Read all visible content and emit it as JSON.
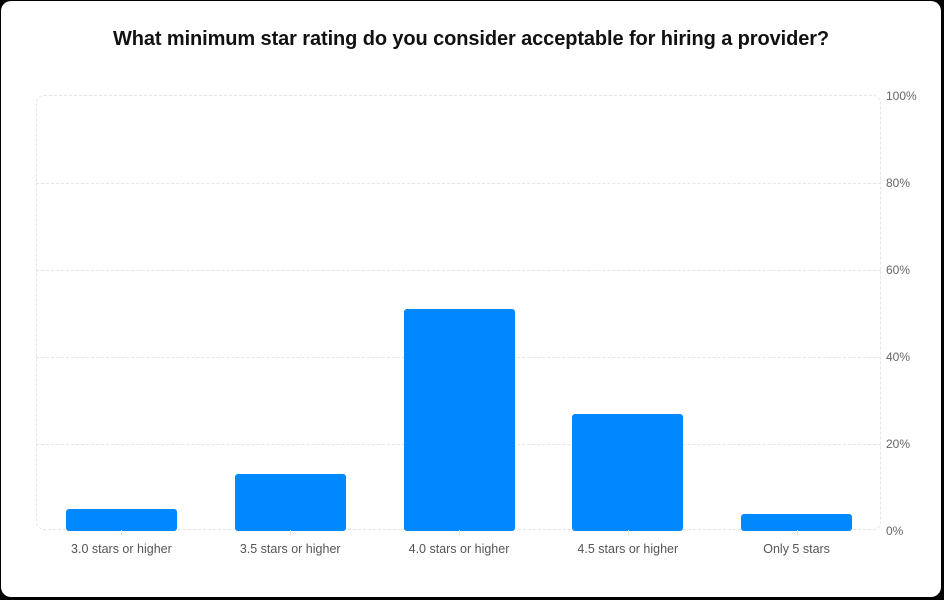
{
  "chart_data": {
    "type": "bar",
    "title": "What minimum star rating do you consider acceptable for hiring a provider?",
    "categories": [
      "3.0 stars or higher",
      "3.5 stars or higher",
      "4.0 stars or higher",
      "4.5 stars or higher",
      "Only 5 stars"
    ],
    "values": [
      5,
      13,
      51,
      27,
      4
    ],
    "xlabel": "",
    "ylabel": "",
    "ylim": [
      0,
      100
    ],
    "yticks": [
      "0%",
      "20%",
      "40%",
      "60%",
      "80%",
      "100%"
    ],
    "y_axis_position": "right",
    "grid": true,
    "legend": null,
    "bar_color": "#0088ff"
  }
}
